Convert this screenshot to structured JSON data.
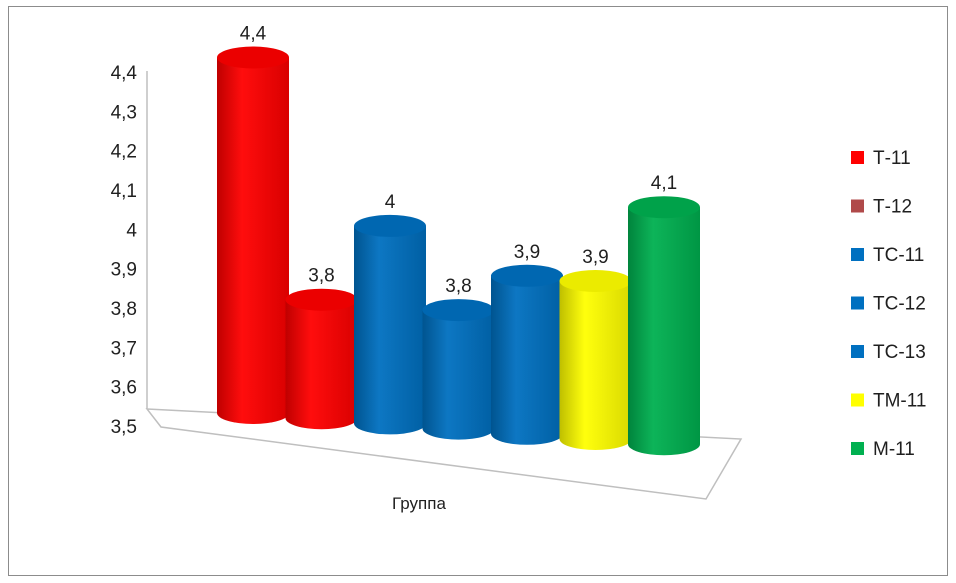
{
  "chart_data": {
    "type": "bar",
    "style": "3d-cylinder",
    "xlabel": "Группа",
    "ylim": [
      3.5,
      4.4
    ],
    "yticks": [
      "3,5",
      "3,6",
      "3,7",
      "3,8",
      "3,9",
      "4",
      "4,1",
      "4,2",
      "4,3",
      "4,4"
    ],
    "legend_position": "right",
    "grid": false,
    "series": [
      {
        "name": "Т-11",
        "value": 4.4,
        "label": "4,4",
        "color": "#ff0000"
      },
      {
        "name": "Т-12",
        "value": 3.8,
        "label": "3,8",
        "color": "#ff0000",
        "legend_color": "#b04a4a"
      },
      {
        "name": "ТС-11",
        "value": 4.0,
        "label": "4",
        "color": "#0070c0"
      },
      {
        "name": "ТС-12",
        "value": 3.8,
        "label": "3,8",
        "color": "#0070c0"
      },
      {
        "name": "ТС-13",
        "value": 3.9,
        "label": "3,9",
        "color": "#0070c0"
      },
      {
        "name": "ТМ-11",
        "value": 3.9,
        "label": "3,9",
        "color": "#ffff00"
      },
      {
        "name": "М-11",
        "value": 4.1,
        "label": "4,1",
        "color": "#00b050"
      }
    ]
  }
}
